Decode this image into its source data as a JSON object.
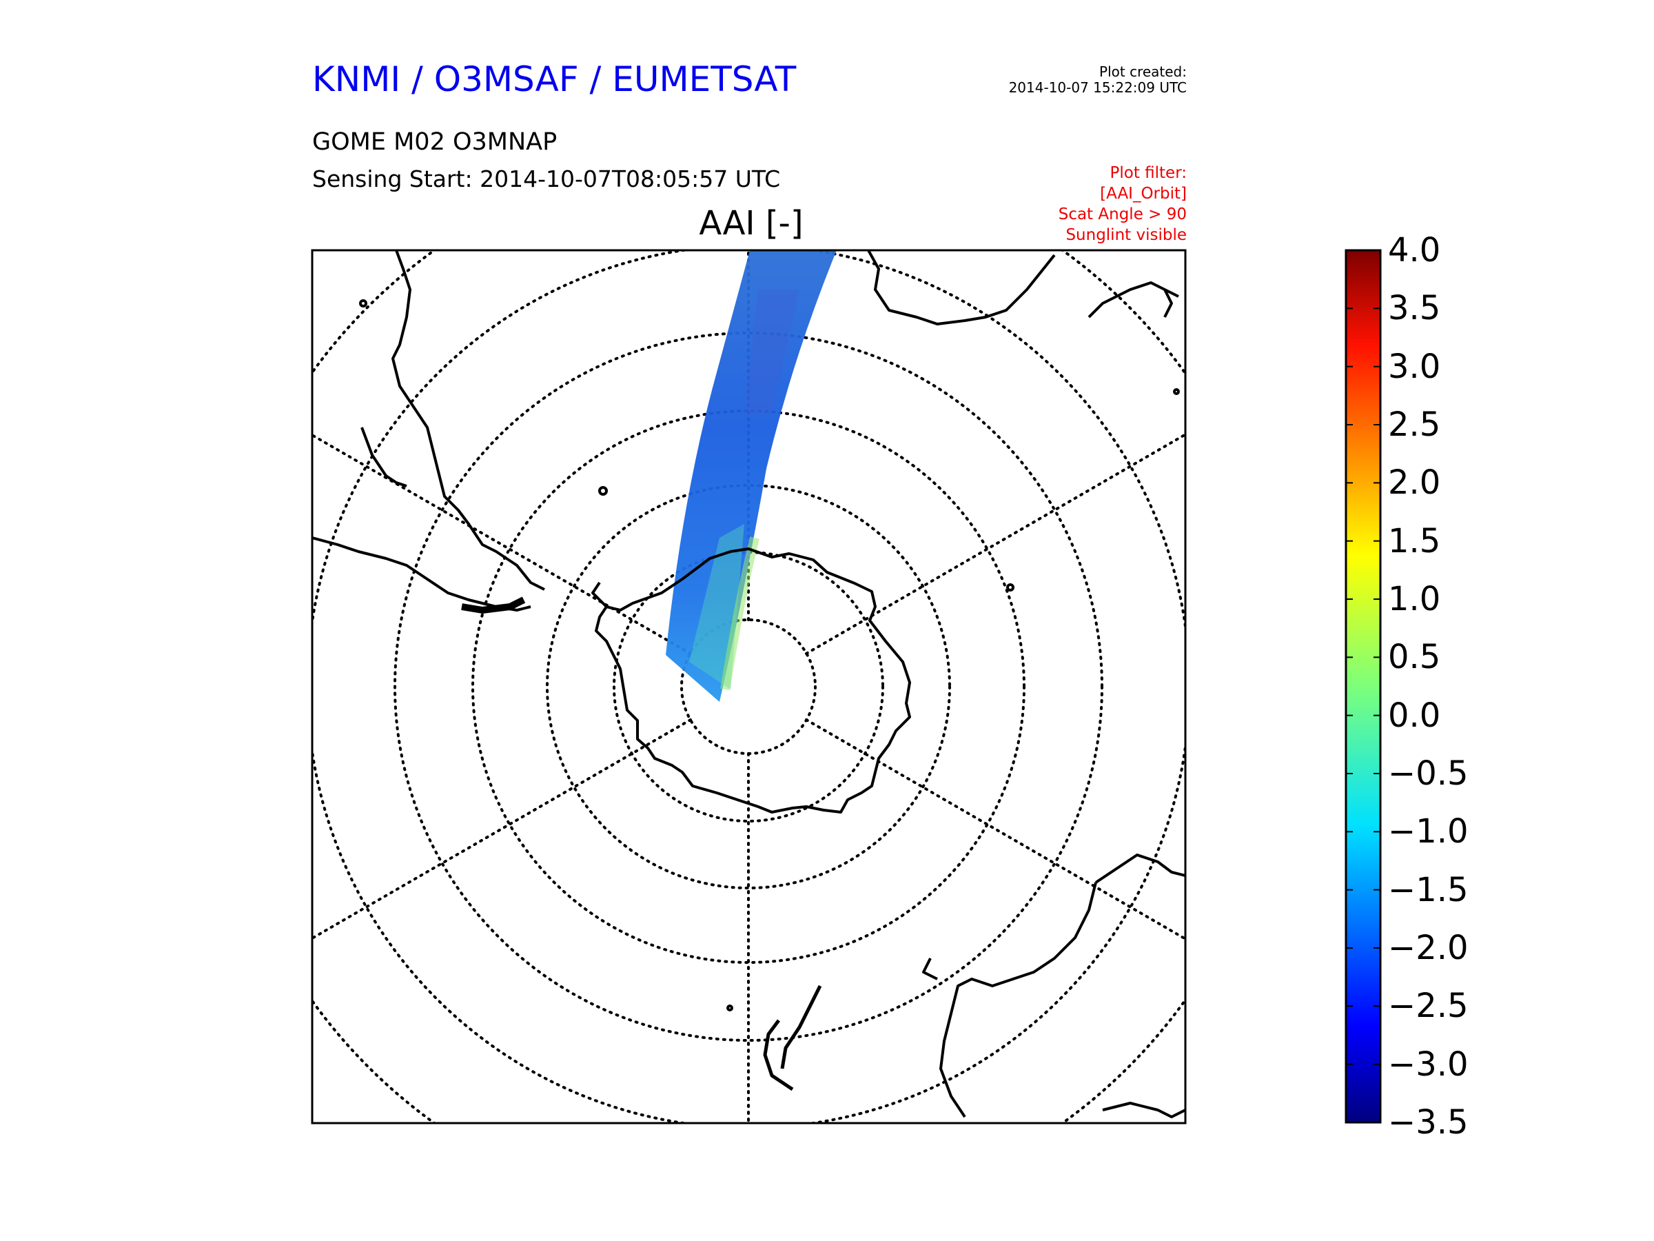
{
  "header": {
    "org_title": "KNMI / O3MSAF / EUMETSAT",
    "created_label": "Plot created:",
    "created_time": "2014-10-07 15:22:09 UTC",
    "product": "GOME M02 O3MNAP",
    "sensing_start": "Sensing Start: 2014-10-07T08:05:57 UTC",
    "filter": [
      "Plot filter:",
      "[AAI_Orbit]",
      "Scat Angle > 90",
      "Sunglint visible"
    ]
  },
  "map": {
    "title": "AAI [-]",
    "projection": "south-polar-stereographic",
    "gridlines": "dotted",
    "colors": {
      "coastline": "#000000",
      "grid": "#000000",
      "frame": "#000000"
    }
  },
  "colorbar": {
    "colormap": "jet",
    "min": -3.5,
    "max": 4.0,
    "ticks": [
      "4.0",
      "3.5",
      "3.0",
      "2.5",
      "2.0",
      "1.5",
      "1.0",
      "0.5",
      "0.0",
      "−0.5",
      "−1.0",
      "−1.5",
      "−2.0",
      "−2.5",
      "−3.0",
      "−3.5"
    ]
  },
  "swath": {
    "typical_value_range": [
      -2.5,
      -1.0
    ]
  }
}
